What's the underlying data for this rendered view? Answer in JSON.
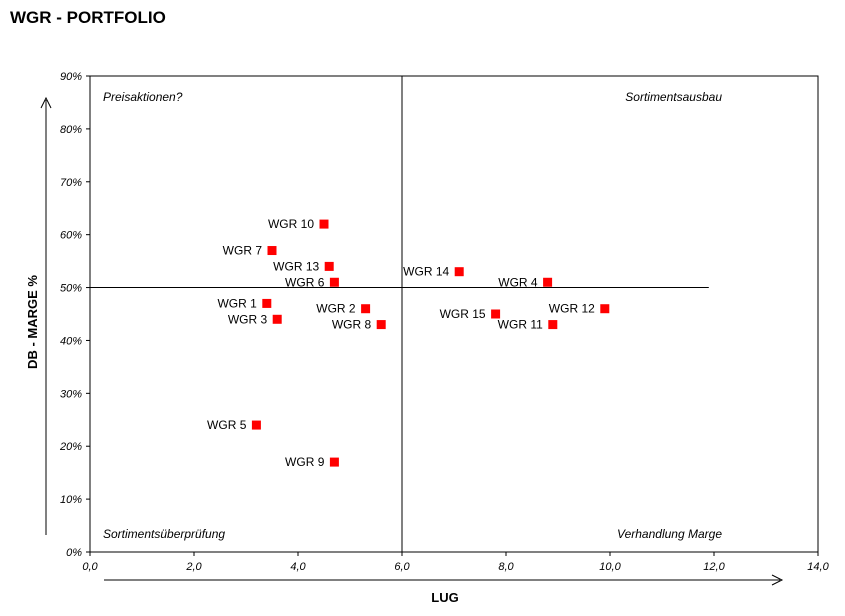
{
  "page": {
    "title": "WGR - PORTFOLIO"
  },
  "chart_data": {
    "type": "scatter",
    "title": "WGR - PORTFOLIO",
    "xlabel": "LUG",
    "ylabel": "DB - MARGE %",
    "xlim": [
      0,
      14
    ],
    "ylim": [
      0,
      90
    ],
    "x_ticks": [
      0,
      2,
      4,
      6,
      8,
      10,
      12,
      14
    ],
    "x_tick_labels": [
      "0,0",
      "2,0",
      "4,0",
      "6,0",
      "8,0",
      "10,0",
      "12,0",
      "14,0"
    ],
    "y_ticks": [
      0,
      10,
      20,
      30,
      40,
      50,
      60,
      70,
      80,
      90
    ],
    "y_tick_labels": [
      "0%",
      "10%",
      "20%",
      "30%",
      "40%",
      "50%",
      "60%",
      "70%",
      "80%",
      "90%"
    ],
    "grid": false,
    "marker_color": "#ff0000",
    "divider_x": 6,
    "divider_y": 50,
    "divider_y_x_extent": [
      0,
      11.9
    ],
    "quadrant_labels": {
      "top_left": "Preisaktionen?",
      "top_right": "Sortimentsausbau",
      "bottom_left": "Sortimentsüberprüfung",
      "bottom_right": "Verhandlung Marge"
    },
    "points": [
      {
        "label": "WGR 1",
        "x": 3.4,
        "y": 47
      },
      {
        "label": "WGR 2",
        "x": 5.3,
        "y": 46
      },
      {
        "label": "WGR 3",
        "x": 3.6,
        "y": 44
      },
      {
        "label": "WGR 4",
        "x": 8.8,
        "y": 51
      },
      {
        "label": "WGR 5",
        "x": 3.2,
        "y": 24
      },
      {
        "label": "WGR 6",
        "x": 4.7,
        "y": 51
      },
      {
        "label": "WGR 7",
        "x": 3.5,
        "y": 57
      },
      {
        "label": "WGR 8",
        "x": 5.6,
        "y": 43
      },
      {
        "label": "WGR 9",
        "x": 4.7,
        "y": 17
      },
      {
        "label": "WGR 10",
        "x": 4.5,
        "y": 62
      },
      {
        "label": "WGR 11",
        "x": 8.9,
        "y": 43
      },
      {
        "label": "WGR 12",
        "x": 9.9,
        "y": 46
      },
      {
        "label": "WGR 13",
        "x": 4.6,
        "y": 54
      },
      {
        "label": "WGR 14",
        "x": 7.1,
        "y": 53
      },
      {
        "label": "WGR 15",
        "x": 7.8,
        "y": 45
      }
    ]
  }
}
